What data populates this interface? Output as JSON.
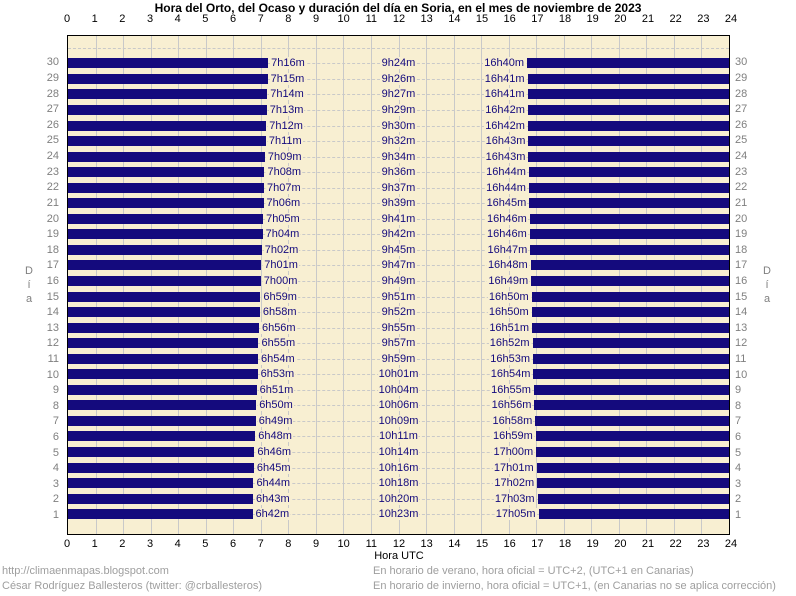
{
  "title": "Hora del Orto, del Ocaso y duración del día en Soria, en el mes de noviembre de 2023",
  "axis": {
    "xlabel": "Hora UTC",
    "ylabel": "Día",
    "hour_ticks": [
      "0",
      "1",
      "2",
      "3",
      "4",
      "5",
      "6",
      "7",
      "8",
      "9",
      "10",
      "11",
      "12",
      "13",
      "14",
      "15",
      "16",
      "17",
      "18",
      "19",
      "20",
      "21",
      "22",
      "23",
      "24"
    ]
  },
  "colors": {
    "bar": "#140a7d",
    "plot_bg": "#f8efd2",
    "grid": "#c9c9c9",
    "day_number": "#7f7f7f",
    "footer_text": "#9e9e9e"
  },
  "chart_data": {
    "type": "bar",
    "title": "Hora del Orto, del Ocaso y duración del día en Soria, en el mes de noviembre de 2023",
    "xlabel": "Hora UTC",
    "ylabel": "Día",
    "xlim": [
      0,
      24
    ],
    "grid": true,
    "description": "Horizontal navy bars mark night time (00:00 to sunrise, and sunset to 24:00) for each day of November 2023; labels give sunrise time (orto), day length (duración) and sunset time (ocaso).",
    "days": [
      {
        "day": 30,
        "orto": "7h16m",
        "duracion": "9h24m",
        "ocaso": "16h40m"
      },
      {
        "day": 29,
        "orto": "7h15m",
        "duracion": "9h26m",
        "ocaso": "16h41m"
      },
      {
        "day": 28,
        "orto": "7h14m",
        "duracion": "9h27m",
        "ocaso": "16h41m"
      },
      {
        "day": 27,
        "orto": "7h13m",
        "duracion": "9h29m",
        "ocaso": "16h42m"
      },
      {
        "day": 26,
        "orto": "7h12m",
        "duracion": "9h30m",
        "ocaso": "16h42m"
      },
      {
        "day": 25,
        "orto": "7h11m",
        "duracion": "9h32m",
        "ocaso": "16h43m"
      },
      {
        "day": 24,
        "orto": "7h09m",
        "duracion": "9h34m",
        "ocaso": "16h43m"
      },
      {
        "day": 23,
        "orto": "7h08m",
        "duracion": "9h36m",
        "ocaso": "16h44m"
      },
      {
        "day": 22,
        "orto": "7h07m",
        "duracion": "9h37m",
        "ocaso": "16h44m"
      },
      {
        "day": 21,
        "orto": "7h06m",
        "duracion": "9h39m",
        "ocaso": "16h45m"
      },
      {
        "day": 20,
        "orto": "7h05m",
        "duracion": "9h41m",
        "ocaso": "16h46m"
      },
      {
        "day": 19,
        "orto": "7h04m",
        "duracion": "9h42m",
        "ocaso": "16h46m"
      },
      {
        "day": 18,
        "orto": "7h02m",
        "duracion": "9h45m",
        "ocaso": "16h47m"
      },
      {
        "day": 17,
        "orto": "7h01m",
        "duracion": "9h47m",
        "ocaso": "16h48m"
      },
      {
        "day": 16,
        "orto": "7h00m",
        "duracion": "9h49m",
        "ocaso": "16h49m"
      },
      {
        "day": 15,
        "orto": "6h59m",
        "duracion": "9h51m",
        "ocaso": "16h50m"
      },
      {
        "day": 14,
        "orto": "6h58m",
        "duracion": "9h52m",
        "ocaso": "16h50m"
      },
      {
        "day": 13,
        "orto": "6h56m",
        "duracion": "9h55m",
        "ocaso": "16h51m"
      },
      {
        "day": 12,
        "orto": "6h55m",
        "duracion": "9h57m",
        "ocaso": "16h52m"
      },
      {
        "day": 11,
        "orto": "6h54m",
        "duracion": "9h59m",
        "ocaso": "16h53m"
      },
      {
        "day": 10,
        "orto": "6h53m",
        "duracion": "10h01m",
        "ocaso": "16h54m"
      },
      {
        "day": 9,
        "orto": "6h51m",
        "duracion": "10h04m",
        "ocaso": "16h55m"
      },
      {
        "day": 8,
        "orto": "6h50m",
        "duracion": "10h06m",
        "ocaso": "16h56m"
      },
      {
        "day": 7,
        "orto": "6h49m",
        "duracion": "10h09m",
        "ocaso": "16h58m"
      },
      {
        "day": 6,
        "orto": "6h48m",
        "duracion": "10h11m",
        "ocaso": "16h59m"
      },
      {
        "day": 5,
        "orto": "6h46m",
        "duracion": "10h14m",
        "ocaso": "17h00m"
      },
      {
        "day": 4,
        "orto": "6h45m",
        "duracion": "10h16m",
        "ocaso": "17h01m"
      },
      {
        "day": 3,
        "orto": "6h44m",
        "duracion": "10h18m",
        "ocaso": "17h02m"
      },
      {
        "day": 2,
        "orto": "6h43m",
        "duracion": "10h20m",
        "ocaso": "17h03m"
      },
      {
        "day": 1,
        "orto": "6h42m",
        "duracion": "10h23m",
        "ocaso": "17h05m"
      }
    ]
  },
  "footer": {
    "left": [
      "http://climaenmapas.blogspot.com",
      "César Rodríguez Ballesteros (twitter: @crballesteros)"
    ],
    "right": [
      "En horario de verano, hora oficial = UTC+2, (UTC+1 en Canarias)",
      "En horario de invierno, hora oficial = UTC+1, (en Canarias no se aplica corrección)"
    ]
  }
}
